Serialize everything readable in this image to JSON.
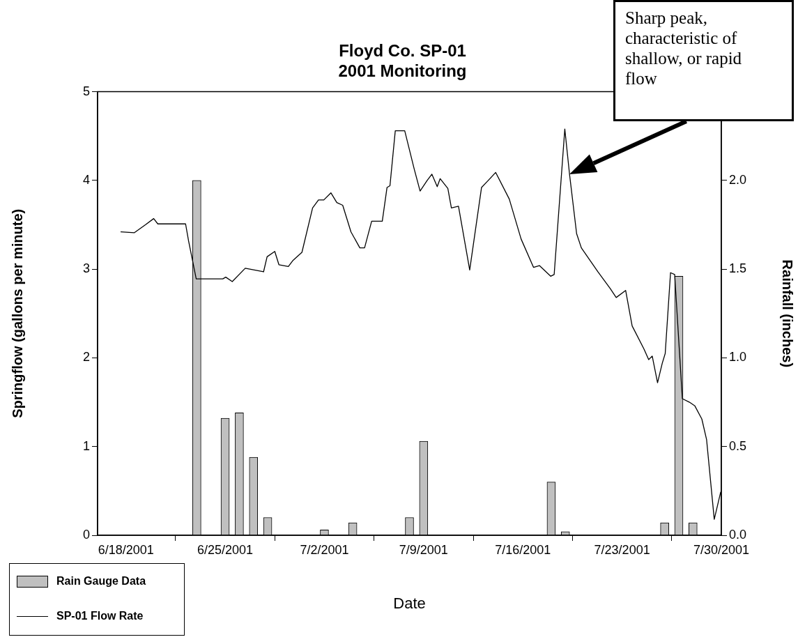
{
  "chart_data": {
    "type": "line",
    "title": "Floyd Co. SP-01",
    "subtitle": "2001 Monitoring",
    "xlabel": "Date",
    "ylabel": "Springflow (gallons per minute)",
    "y2label": "Rainfall (inches)",
    "xlim": [
      "2001-06-16",
      "2001-07-30"
    ],
    "xticks": [
      {
        "value": "2001-06-18",
        "label": "6/18/2001"
      },
      {
        "value": "2001-06-25",
        "label": "6/25/2001"
      },
      {
        "value": "2001-07-02",
        "label": "7/2/2001"
      },
      {
        "value": "2001-07-09",
        "label": "7/9/2001"
      },
      {
        "value": "2001-07-16",
        "label": "7/16/2001"
      },
      {
        "value": "2001-07-23",
        "label": "7/23/2001"
      },
      {
        "value": "2001-07-30",
        "label": "7/30/2001"
      }
    ],
    "ylim": [
      0,
      5
    ],
    "yticks": [
      0,
      1,
      2,
      3,
      4,
      5
    ],
    "y2lim": [
      0,
      2.5
    ],
    "y2ticks": [
      {
        "value": 0,
        "label": "0.0"
      },
      {
        "value": 0.5,
        "label": "0.5"
      },
      {
        "value": 1,
        "label": "1.0"
      },
      {
        "value": 1.5,
        "label": "1.5"
      },
      {
        "value": 2,
        "label": "2.0"
      }
    ],
    "grid": false,
    "legend": "bottom left",
    "marker": "none",
    "line_style": "solid",
    "annotations": [
      "Sharp peak, characteristic of shallow, or rapid flow"
    ],
    "series": [
      {
        "name": "Rain Gauge Data",
        "type": "bar",
        "axis": "y2",
        "color": "#c0c0c0",
        "x": [
          "2001-06-23",
          "2001-06-25",
          "2001-06-26",
          "2001-06-27",
          "2001-06-28",
          "2001-07-02",
          "2001-07-04",
          "2001-07-08",
          "2001-07-09",
          "2001-07-18",
          "2001-07-19",
          "2001-07-26",
          "2001-07-27",
          "2001-07-28"
        ],
        "values": [
          2.0,
          0.66,
          0.69,
          0.44,
          0.1,
          0.03,
          0.07,
          0.1,
          0.53,
          0.3,
          0.02,
          0.07,
          1.46,
          0.07
        ]
      },
      {
        "name": "SP-01 Flow Rate",
        "axis": "y",
        "color": "#000000",
        "x": [
          "2001-06-17T15:00",
          "2001-06-18T14:00",
          "2001-06-19T09:00",
          "2001-06-19T23:00",
          "2001-06-20T06:00",
          "2001-06-22T05:00",
          "2001-06-22T10:00",
          "2001-06-22T23:00",
          "2001-06-24T20:00",
          "2001-06-25T01:00",
          "2001-06-25T12:00",
          "2001-06-26T10:00",
          "2001-06-27T17:00",
          "2001-06-27T23:00",
          "2001-06-28T12:00",
          "2001-06-28T19:00",
          "2001-06-29T11:00",
          "2001-06-29T19:00",
          "2001-06-30T10:00",
          "2001-07-01T04:00",
          "2001-07-01T14:00",
          "2001-07-01T23:00",
          "2001-07-02T11:00",
          "2001-07-02T21:00",
          "2001-07-03T07:00",
          "2001-07-03T21:00",
          "2001-07-04T12:00",
          "2001-07-04T20:00",
          "2001-07-05T08:00",
          "2001-07-06T02:00",
          "2001-07-06T10:00",
          "2001-07-06T15:00",
          "2001-07-07T00:00",
          "2001-07-07T16:00",
          "2001-07-08T08:00",
          "2001-07-08T18:00",
          "2001-07-09T06:00",
          "2001-07-09T14:00",
          "2001-07-09T23:00",
          "2001-07-10T04:00",
          "2001-07-10T17:00",
          "2001-07-10T23:00",
          "2001-07-11T11:00",
          "2001-07-12T06:00",
          "2001-07-13T02:00",
          "2001-07-13T12:00",
          "2001-07-14T02:00",
          "2001-07-15T01:00",
          "2001-07-15T21:00",
          "2001-07-16T18:00",
          "2001-07-17T04:00",
          "2001-07-17T23:00",
          "2001-07-18T05:00",
          "2001-07-18T23:00",
          "2001-07-19T07:00",
          "2001-07-19T19:00",
          "2001-07-20T03:00",
          "2001-07-21T07:00",
          "2001-07-22T04:00",
          "2001-07-22T14:00",
          "2001-07-23T06:00",
          "2001-07-23T17:00",
          "2001-07-24T13:00",
          "2001-07-24T21:00",
          "2001-07-25T03:00",
          "2001-07-25T12:00",
          "2001-07-25T20:00",
          "2001-07-26T01:00",
          "2001-07-26T10:00",
          "2001-07-26T17:00",
          "2001-07-27T06:00",
          "2001-07-27T18:00",
          "2001-07-28T03:00",
          "2001-07-28T15:00",
          "2001-07-28T23:00",
          "2001-07-29T12:00",
          "2001-07-29T23:00"
        ],
        "values": [
          3.42,
          3.41,
          3.5,
          3.57,
          3.51,
          3.51,
          3.32,
          2.89,
          2.89,
          2.91,
          2.86,
          3.01,
          2.97,
          3.14,
          3.2,
          3.05,
          3.03,
          3.1,
          3.19,
          3.69,
          3.78,
          3.78,
          3.86,
          3.75,
          3.72,
          3.42,
          3.24,
          3.24,
          3.54,
          3.54,
          3.92,
          3.94,
          4.56,
          4.56,
          4.13,
          3.88,
          4.0,
          4.07,
          3.93,
          4.02,
          3.91,
          3.69,
          3.71,
          2.99,
          3.92,
          3.99,
          4.09,
          3.79,
          3.34,
          3.02,
          3.04,
          2.92,
          2.94,
          4.58,
          4.07,
          3.4,
          3.24,
          2.97,
          2.78,
          2.68,
          2.76,
          2.36,
          2.1,
          1.98,
          2.02,
          1.72,
          1.94,
          2.05,
          2.96,
          2.94,
          1.54,
          1.5,
          1.46,
          1.31,
          1.08,
          0.18,
          0.49
        ]
      }
    ]
  }
}
